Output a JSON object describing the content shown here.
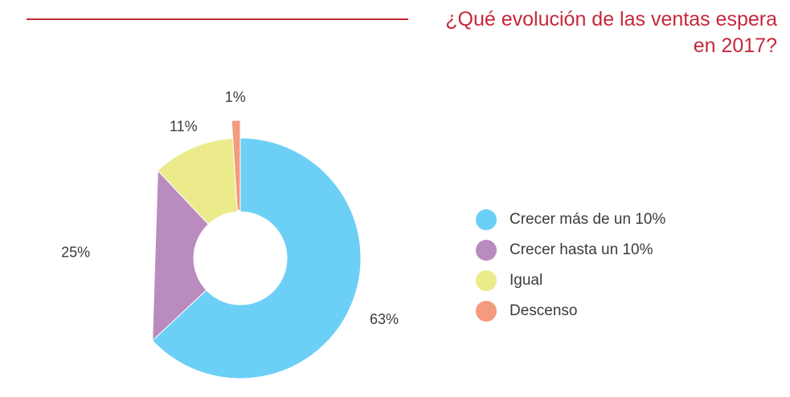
{
  "title": "¿Qué evolución de las ventas espera en 2017?",
  "chart_data": {
    "type": "pie",
    "variant": "donut",
    "categories": [
      "Crecer más de un 10%",
      "Crecer hasta un 10%",
      "Igual",
      "Descenso"
    ],
    "values": [
      63,
      25,
      11,
      1
    ],
    "data_labels": [
      "63%",
      "25%",
      "11%",
      "1%"
    ],
    "colors": [
      "#6ccff6",
      "#b98bbe",
      "#ebeb8c",
      "#f49a7e"
    ],
    "exploded": [
      false,
      false,
      false,
      true
    ],
    "legend_position": "right"
  }
}
